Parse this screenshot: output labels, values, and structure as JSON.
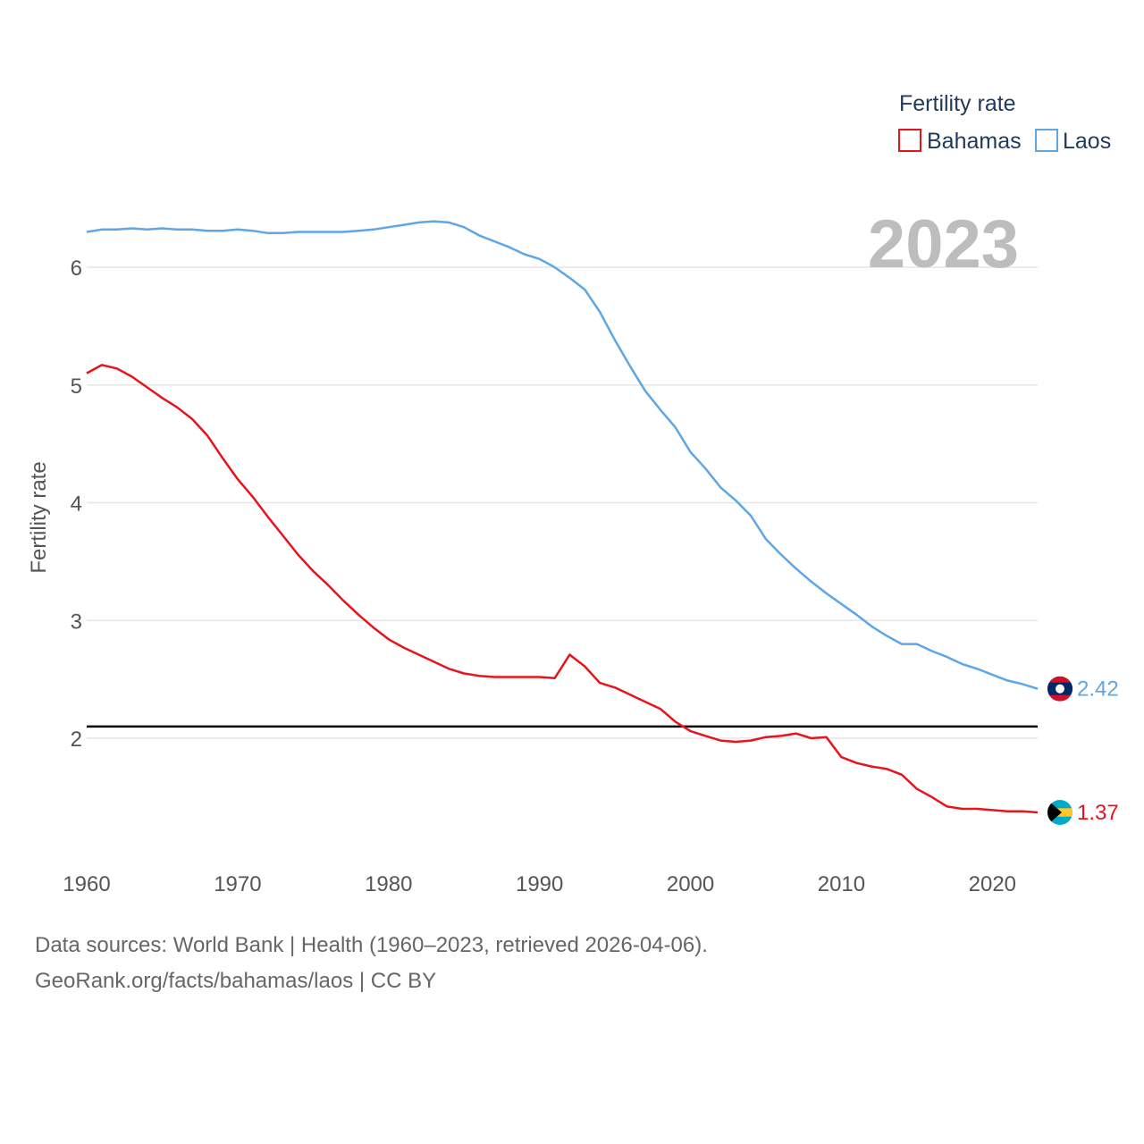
{
  "chart_data": {
    "type": "line",
    "ylabel": "Fertility rate",
    "xlabel": "",
    "legend_title": "Fertility rate",
    "legend_position": "top-right",
    "year_display": "2023",
    "xlim": [
      1960,
      2023
    ],
    "ylim": [
      1.0,
      6.8
    ],
    "x_ticks": [
      1960,
      1970,
      1980,
      1990,
      2000,
      2010,
      2020
    ],
    "y_ticks": [
      2,
      3,
      4,
      5,
      6
    ],
    "replacement_level": 2.1,
    "grid": true,
    "x": [
      1960,
      1961,
      1962,
      1963,
      1964,
      1965,
      1966,
      1967,
      1968,
      1969,
      1970,
      1971,
      1972,
      1973,
      1974,
      1975,
      1976,
      1977,
      1978,
      1979,
      1980,
      1981,
      1982,
      1983,
      1984,
      1985,
      1986,
      1987,
      1988,
      1989,
      1990,
      1991,
      1992,
      1993,
      1994,
      1995,
      1996,
      1997,
      1998,
      1999,
      2000,
      2001,
      2002,
      2003,
      2004,
      2005,
      2006,
      2007,
      2008,
      2009,
      2010,
      2011,
      2012,
      2013,
      2014,
      2015,
      2016,
      2017,
      2018,
      2019,
      2020,
      2021,
      2022,
      2023
    ],
    "series": [
      {
        "name": "Bahamas",
        "color": "#e8141c",
        "end_label": "1.37",
        "values": [
          5.1,
          5.17,
          5.14,
          5.07,
          4.98,
          4.89,
          4.81,
          4.71,
          4.57,
          4.38,
          4.2,
          4.05,
          3.88,
          3.72,
          3.56,
          3.42,
          3.3,
          3.17,
          3.05,
          2.94,
          2.84,
          2.77,
          2.71,
          2.65,
          2.59,
          2.55,
          2.53,
          2.52,
          2.52,
          2.52,
          2.52,
          2.51,
          2.71,
          2.61,
          2.47,
          2.43,
          2.37,
          2.31,
          2.25,
          2.14,
          2.06,
          2.02,
          1.98,
          1.97,
          1.98,
          2.01,
          2.02,
          2.04,
          2.0,
          2.01,
          1.84,
          1.79,
          1.76,
          1.74,
          1.69,
          1.57,
          1.5,
          1.42,
          1.4,
          1.4,
          1.39,
          1.38,
          1.38,
          1.37
        ]
      },
      {
        "name": "Laos",
        "color": "#5ea6e6",
        "end_label": "2.42",
        "values": [
          6.3,
          6.32,
          6.32,
          6.33,
          6.32,
          6.33,
          6.32,
          6.32,
          6.31,
          6.31,
          6.32,
          6.31,
          6.29,
          6.29,
          6.3,
          6.3,
          6.3,
          6.3,
          6.31,
          6.32,
          6.34,
          6.36,
          6.38,
          6.39,
          6.38,
          6.34,
          6.27,
          6.22,
          6.17,
          6.11,
          6.07,
          6.0,
          5.91,
          5.81,
          5.62,
          5.38,
          5.16,
          4.95,
          4.79,
          4.64,
          4.43,
          4.29,
          4.13,
          4.02,
          3.89,
          3.69,
          3.56,
          3.44,
          3.33,
          3.23,
          3.14,
          3.05,
          2.95,
          2.87,
          2.8,
          2.8,
          2.74,
          2.69,
          2.63,
          2.59,
          2.54,
          2.49,
          2.46,
          2.42
        ]
      }
    ]
  },
  "footer": {
    "line1": "Data sources: World Bank | Health (1960–2023, retrieved 2026-04-06).",
    "line2": "GeoRank.org/facts/bahamas/laos | CC BY"
  }
}
